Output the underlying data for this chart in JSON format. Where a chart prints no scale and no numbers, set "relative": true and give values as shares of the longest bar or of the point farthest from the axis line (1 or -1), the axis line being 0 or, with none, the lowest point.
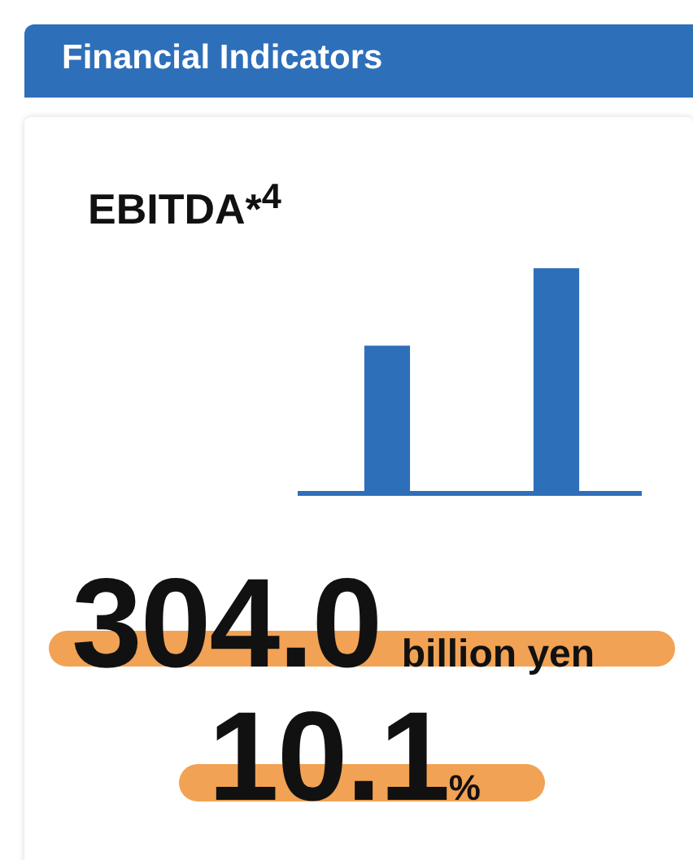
{
  "chart_data": {
    "type": "bar",
    "title": "Financial Indicators",
    "subtitle": "EBITDA*$^{4}$",
    "categories": [
      null,
      null
    ],
    "values": [
      0.66,
      1
    ],
    "color": "#2e6fba",
    "relative": true,
    "annotations": [
      "304.0 billion yen",
      "10.1%"
    ]
  }
}
